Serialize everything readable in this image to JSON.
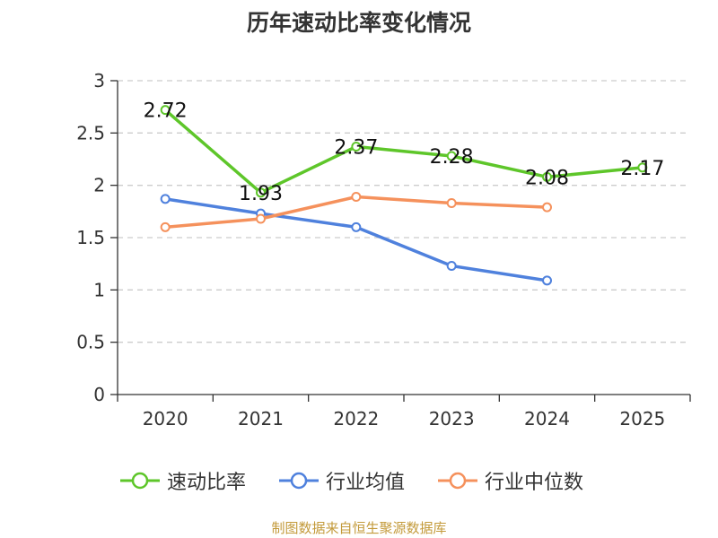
{
  "chart_data": {
    "type": "line",
    "title": "历年速动比率变化情况",
    "categories": [
      "2020",
      "2021",
      "2022",
      "2023",
      "2024",
      "2025"
    ],
    "yticks": [
      "0",
      "0.5",
      "1",
      "1.5",
      "2",
      "2.5",
      "3"
    ],
    "ylim": [
      0,
      3
    ],
    "grid": true,
    "xlabel": "",
    "ylabel": "",
    "legend_position": "bottom",
    "series": [
      {
        "name": "速动比率",
        "color": "#5ec62a",
        "values": [
          2.72,
          1.93,
          2.37,
          2.28,
          2.08,
          2.17
        ],
        "labels": [
          "2.72",
          "1.93",
          "2.37",
          "2.28",
          "2.08",
          "2.17"
        ]
      },
      {
        "name": "行业均值",
        "color": "#4f81dd",
        "values": [
          1.87,
          1.73,
          1.6,
          1.23,
          1.09,
          null
        ]
      },
      {
        "name": "行业中位数",
        "color": "#f5915c",
        "values": [
          1.6,
          1.68,
          1.89,
          1.83,
          1.79,
          null
        ]
      }
    ]
  },
  "source": "制图数据来自恒生聚源数据库"
}
